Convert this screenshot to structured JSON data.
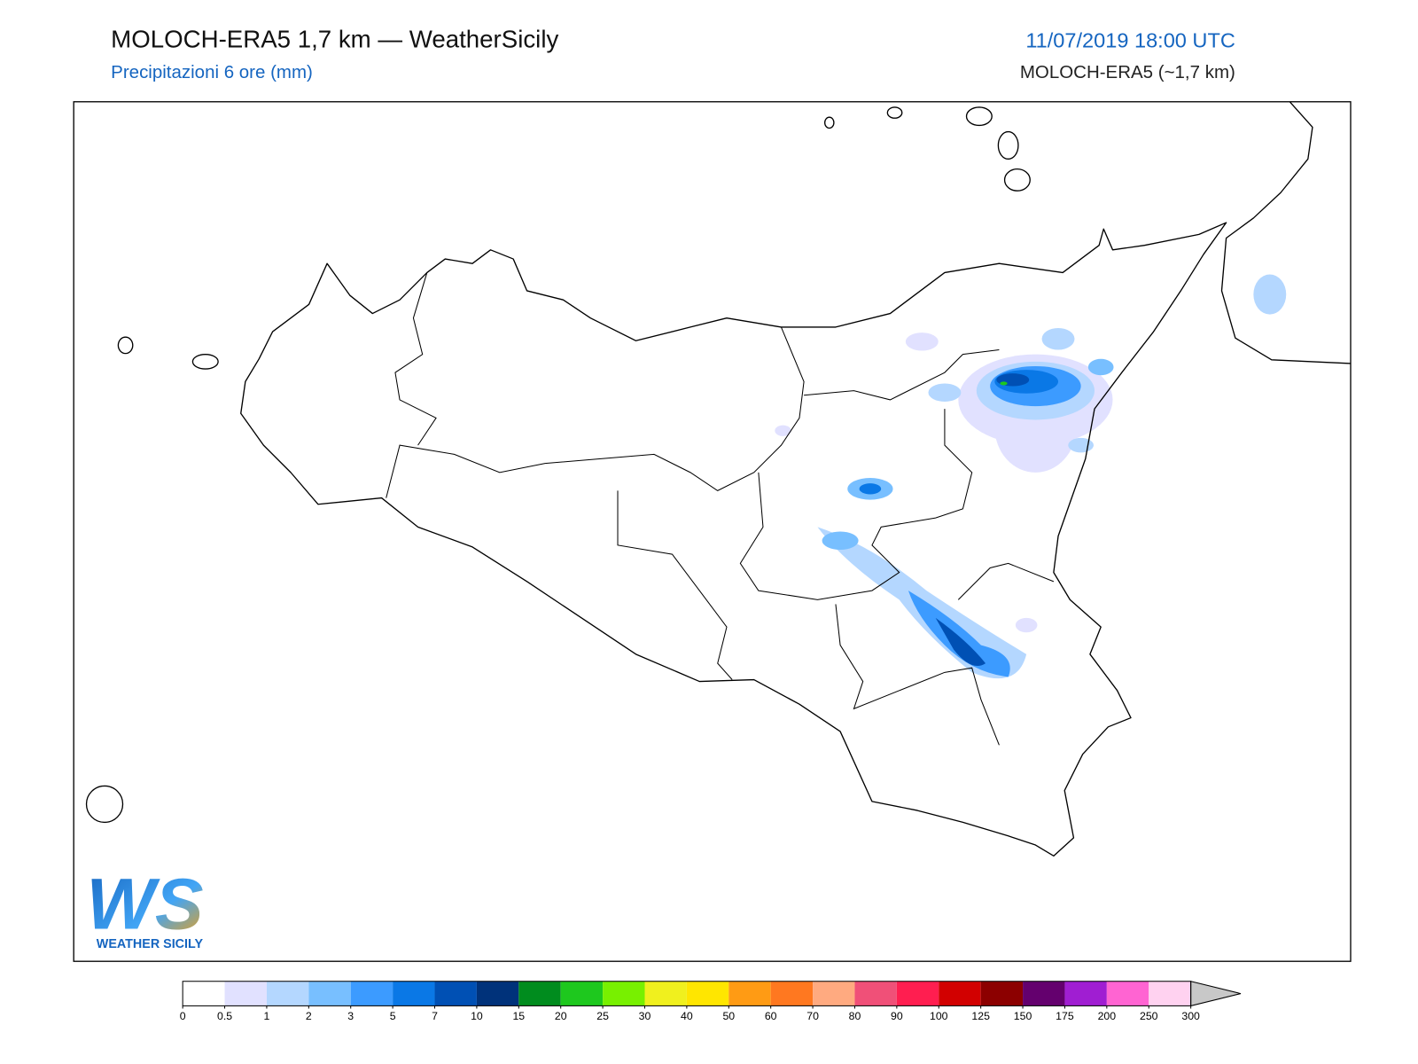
{
  "header": {
    "title": "MOLOCH-ERA5 1,7 km — WeatherSicily",
    "subtitle": "Precipitazioni 6 ore (mm)",
    "datetime": "11/07/2019 18:00 UTC",
    "model": "MOLOCH-ERA5 (~1,7 km)"
  },
  "logo": {
    "letters": "WS",
    "text": "WEATHER SICILY"
  },
  "colorbar": {
    "ticks": [
      0,
      0.5,
      1,
      2,
      3,
      5,
      7,
      10,
      15,
      20,
      25,
      30,
      40,
      50,
      60,
      70,
      80,
      90,
      100,
      125,
      150,
      175,
      200,
      250,
      300
    ],
    "colors": [
      "#ffffff",
      "#e1e1ff",
      "#b4d7ff",
      "#78bfff",
      "#3c9bff",
      "#0a78e6",
      "#0050b4",
      "#00327a",
      "#008c1e",
      "#1ec81e",
      "#78f000",
      "#f0f01e",
      "#ffe600",
      "#ff9b14",
      "#ff7820",
      "#ffaa80",
      "#f05078",
      "#ff1e50",
      "#d20000",
      "#8c0000",
      "#64006e",
      "#a01ed2",
      "#ff64d2",
      "#ffd2f0"
    ],
    "extend_color": "#c8c8c8"
  }
}
